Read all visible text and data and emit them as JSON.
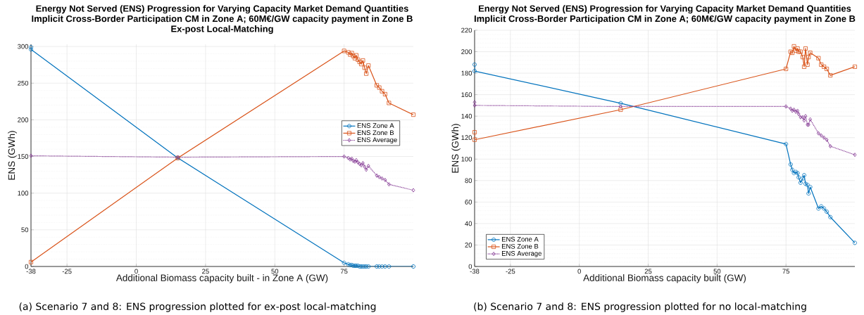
{
  "chart_data": [
    {
      "type": "line",
      "title": "Energy Not Served (ENS) Progression for Varying Capacity Market Demand Quantities",
      "subtitle": "Implicit Cross-Border Participation CM in Zone A; 60M€/GW capacity payment in Zone B Ex-post Local-Matching",
      "xlabel": "Additional Biomass capacity built - in Zone A (GW)",
      "ylabel": "ENS (GWh)",
      "annotations": [
        "(a) Scenario 7 and 8: ENS progression plotted for ex-post local-matching"
      ],
      "xlim": [
        -38,
        100
      ],
      "ylim": [
        0,
        303
      ],
      "xticks": [
        -38,
        -25,
        0,
        25,
        50,
        75
      ],
      "yticks": [
        0,
        50,
        100,
        150,
        200,
        250,
        300
      ],
      "grid": true,
      "legend": "right",
      "series": [
        {
          "name": "ENS Zone A",
          "color": "#0072bd",
          "marker": "circle",
          "line_style": "solid",
          "x": [
            -38,
            -38,
            15,
            75,
            76.5,
            77.2,
            77.8,
            78.3,
            78.9,
            79.4,
            80,
            80.6,
            81.2,
            81.8,
            82.4,
            83,
            83.8,
            86.8,
            87.7,
            88.7,
            89.8,
            91.2,
            100
          ],
          "values": [
            299,
            296,
            148,
            5,
            3,
            2,
            2,
            1,
            1,
            1,
            1,
            0,
            0,
            0,
            0,
            0,
            0,
            0,
            0,
            0,
            0,
            0,
            0
          ]
        },
        {
          "name": "ENS Zone B",
          "color": "#d95319",
          "marker": "square",
          "line_style": "solid",
          "x": [
            -38,
            15,
            75,
            76.5,
            77.2,
            77.8,
            78.3,
            78.9,
            79.4,
            80,
            80.6,
            81.2,
            81.8,
            82.4,
            83,
            83.8,
            86.8,
            87.7,
            88.7,
            89.8,
            91.2,
            100
          ],
          "values": [
            6,
            148,
            294,
            292,
            289,
            291,
            287,
            284,
            288,
            282,
            279,
            276,
            281,
            271,
            263,
            274,
            247,
            244,
            239,
            235,
            223,
            207
          ]
        },
        {
          "name": "ENS Average",
          "color": "#7e2f8e",
          "marker": "diamond",
          "line_style": "dotted",
          "x": [
            -38,
            15,
            75,
            76.5,
            77.2,
            77.8,
            78.3,
            78.9,
            79.4,
            80,
            80.6,
            81.2,
            81.8,
            82.4,
            83,
            83.8,
            86.8,
            87.7,
            88.7,
            89.8,
            91.2,
            100
          ],
          "values": [
            151,
            149,
            150,
            148,
            146,
            147,
            144,
            143,
            145,
            142,
            140,
            138,
            141,
            136,
            132,
            137,
            124,
            122,
            120,
            118,
            112,
            104
          ]
        }
      ]
    },
    {
      "type": "line",
      "title": "Energy Not Served (ENS) Progression for Varying Capacity Market Demand Quantities",
      "subtitle": "Implicit Cross-Border Participation CM in Zone A; 60M€/GW capacity payment in Zone B",
      "xlabel": "Additional Biomass capacity built (GW)",
      "ylabel": "ENS (GWh)",
      "annotations": [
        "(b) Scenario 7 and 8: ENS progression plotted for no local-matching"
      ],
      "xlim": [
        -38,
        100
      ],
      "ylim": [
        0,
        220
      ],
      "xticks": [
        -38,
        -25,
        0,
        25,
        50,
        75
      ],
      "yticks": [
        0,
        20,
        40,
        60,
        80,
        100,
        120,
        140,
        160,
        180,
        200,
        220
      ],
      "grid": true,
      "legend": "bottom left",
      "series": [
        {
          "name": "ENS Zone A",
          "color": "#0072bd",
          "marker": "circle",
          "line_style": "solid",
          "x": [
            -38,
            -38,
            15,
            75,
            76.7,
            77.3,
            77.9,
            78.6,
            79.2,
            79.6,
            80.3,
            81.1,
            81.6,
            82.1,
            82.8,
            83.2,
            83.8,
            86.8,
            87.8,
            88.8,
            89.8,
            91.1,
            100
          ],
          "values": [
            188,
            182,
            152,
            114,
            95,
            90,
            87,
            88,
            87,
            83,
            78,
            82,
            85,
            77,
            76,
            68,
            74,
            54,
            56,
            54,
            51,
            46,
            22
          ]
        },
        {
          "name": "ENS Zone B",
          "color": "#d95319",
          "marker": "square",
          "line_style": "solid",
          "x": [
            -38,
            -38,
            15,
            75,
            76.7,
            77.3,
            77.9,
            78.6,
            79.2,
            79.6,
            80.3,
            81.1,
            81.6,
            82.1,
            82.8,
            83.2,
            83.8,
            86.8,
            87.8,
            88.8,
            89.8,
            91.1,
            100
          ],
          "values": [
            125,
            118,
            146,
            184,
            200,
            199,
            205,
            201,
            203,
            200,
            200,
            195,
            186,
            203,
            188,
            195,
            199,
            194,
            188,
            186,
            184,
            178,
            186
          ]
        },
        {
          "name": "ENS Average",
          "color": "#7e2f8e",
          "marker": "diamond",
          "line_style": "dotted",
          "x": [
            -38,
            -38,
            15,
            75,
            76.7,
            77.3,
            77.9,
            78.6,
            79.2,
            79.6,
            80.3,
            81.1,
            81.6,
            82.1,
            82.8,
            83.2,
            83.8,
            86.8,
            87.8,
            88.8,
            89.8,
            91.1,
            100
          ],
          "values": [
            153,
            150,
            149,
            149,
            147,
            145,
            146,
            144,
            145,
            142,
            139,
            139,
            136,
            140,
            132,
            132,
            137,
            124,
            122,
            120,
            118,
            112,
            104
          ]
        }
      ]
    }
  ]
}
